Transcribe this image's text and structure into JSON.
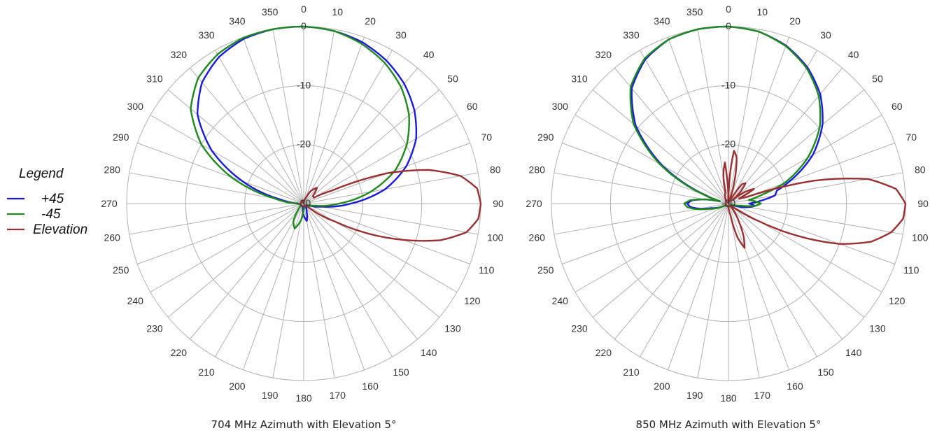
{
  "legend": {
    "title": "Legend",
    "items": [
      {
        "label": "+45",
        "color": "#1a1adb"
      },
      {
        "label": "-45",
        "color": "#1e8a1e"
      },
      {
        "label": "Elevation",
        "color": "#9b2f2f"
      }
    ]
  },
  "chart_data": [
    {
      "type": "polar-line",
      "title": "704 MHz Azimuth with Elevation 5°",
      "angular_ticks": [
        "0",
        "10",
        "20",
        "30",
        "40",
        "50",
        "60",
        "70",
        "80",
        "90",
        "100",
        "110",
        "120",
        "130",
        "140",
        "150",
        "160",
        "170",
        "180",
        "190",
        "200",
        "210",
        "220",
        "230",
        "240",
        "250",
        "260",
        "270",
        "280",
        "290",
        "300",
        "310",
        "320",
        "330",
        "340",
        "350"
      ],
      "radial_range": [
        -30,
        0
      ],
      "radial_ticks": [
        "0",
        "-10",
        "-20",
        "-30"
      ],
      "grid": true,
      "series": [
        {
          "name": "+45",
          "color": "#1a1adb",
          "angle": [
            0,
            10,
            20,
            30,
            40,
            50,
            60,
            70,
            80,
            90,
            100,
            110,
            120,
            130,
            140,
            150,
            160,
            170,
            180,
            190,
            200,
            210,
            220,
            230,
            240,
            250,
            260,
            270,
            280,
            290,
            300,
            310,
            320,
            330,
            340,
            350
          ],
          "values": [
            0,
            -0.3,
            -0.9,
            -2,
            -3.5,
            -5.5,
            -8,
            -11.5,
            -16,
            -22,
            -27,
            -29,
            -29.5,
            -29.5,
            -29.5,
            -29.2,
            -28.5,
            -27,
            -28,
            -29.2,
            -29.5,
            -29.5,
            -29.5,
            -29.5,
            -29.5,
            -29.5,
            -29.5,
            -29,
            -26,
            -19,
            -12,
            -6.5,
            -3.2,
            -1.3,
            -0.3,
            0
          ]
        },
        {
          "name": "-45",
          "color": "#1e8a1e",
          "angle": [
            0,
            10,
            20,
            30,
            40,
            50,
            60,
            70,
            80,
            90,
            100,
            110,
            120,
            130,
            140,
            150,
            160,
            170,
            180,
            190,
            200,
            210,
            220,
            230,
            240,
            250,
            260,
            270,
            280,
            290,
            300,
            310,
            320,
            330,
            340,
            350
          ],
          "values": [
            0,
            -0.3,
            -1.2,
            -2.5,
            -4.3,
            -6.7,
            -9.8,
            -13.5,
            -18.5,
            -24,
            -28,
            -29.2,
            -29.5,
            -29.5,
            -29.5,
            -29.5,
            -29.5,
            -29.4,
            -29,
            -27,
            -25.5,
            -26.5,
            -28.5,
            -29.2,
            -29.5,
            -29.5,
            -29.5,
            -29,
            -25,
            -17,
            -10,
            -5,
            -2.2,
            -0.8,
            -0.1,
            0
          ]
        },
        {
          "name": "Elevation",
          "color": "#9b2f2f",
          "angle": [
            0,
            10,
            20,
            30,
            40,
            50,
            60,
            65,
            70,
            75,
            80,
            85,
            90,
            95,
            100,
            105,
            110,
            115,
            120,
            125,
            130,
            140,
            150,
            170,
            190,
            210,
            230,
            250,
            270,
            290,
            310,
            330,
            350
          ],
          "values": [
            -30,
            -29.5,
            -29,
            -27.5,
            -26.5,
            -28,
            -28,
            -25,
            -15,
            -8,
            -3,
            -0.5,
            0,
            -0.3,
            -2,
            -6,
            -12,
            -18,
            -24,
            -27,
            -29.5,
            -29.5,
            -29.5,
            -29.5,
            -29.5,
            -29.5,
            -29.5,
            -29.5,
            -29.5,
            -29.5,
            -29.5,
            -29.5,
            -29.5
          ]
        }
      ]
    },
    {
      "type": "polar-line",
      "title": "850 MHz Azimuth with Elevation 5°",
      "angular_ticks": [
        "0",
        "10",
        "20",
        "30",
        "40",
        "50",
        "60",
        "70",
        "80",
        "90",
        "100",
        "110",
        "120",
        "130",
        "140",
        "150",
        "160",
        "170",
        "180",
        "190",
        "200",
        "210",
        "220",
        "230",
        "240",
        "250",
        "260",
        "270",
        "280",
        "290",
        "300",
        "310",
        "320",
        "330",
        "340",
        "350"
      ],
      "radial_range": [
        -30,
        0
      ],
      "radial_ticks": [
        "0",
        "-10",
        "-20",
        "-30"
      ],
      "grid": true,
      "series": [
        {
          "name": "+45",
          "color": "#1a1adb",
          "angle": [
            0,
            10,
            20,
            30,
            40,
            50,
            60,
            70,
            75,
            80,
            85,
            90,
            95,
            100,
            110,
            120,
            150,
            180,
            210,
            240,
            255,
            260,
            265,
            270,
            275,
            280,
            285,
            290,
            300,
            310,
            320,
            330,
            340,
            350
          ],
          "values": [
            0,
            -0.4,
            -1.5,
            -3.3,
            -5.8,
            -9.2,
            -13.5,
            -19,
            -21.5,
            -22,
            -24.5,
            -26.5,
            -25.5,
            -26.5,
            -29,
            -29.5,
            -29.5,
            -29.5,
            -29.5,
            -29.5,
            -27,
            -25,
            -23.5,
            -23,
            -23.8,
            -26,
            -28.5,
            -26,
            -17,
            -9.5,
            -4.5,
            -1.8,
            -0.4,
            0
          ]
        },
        {
          "name": "-45",
          "color": "#1e8a1e",
          "angle": [
            0,
            10,
            20,
            30,
            40,
            50,
            60,
            70,
            75,
            80,
            85,
            90,
            95,
            100,
            110,
            120,
            150,
            180,
            210,
            240,
            255,
            260,
            265,
            270,
            275,
            280,
            285,
            290,
            300,
            310,
            320,
            330,
            340,
            350
          ],
          "values": [
            0,
            -0.4,
            -1.6,
            -3.5,
            -6.2,
            -9.8,
            -14.5,
            -20,
            -24,
            -26.5,
            -25.5,
            -24.5,
            -25.5,
            -28,
            -29.5,
            -29.5,
            -29.5,
            -29.5,
            -29.5,
            -29.5,
            -26.5,
            -24.5,
            -23,
            -22.5,
            -23.5,
            -26,
            -28.5,
            -25.5,
            -16.5,
            -9,
            -4.2,
            -1.6,
            -0.4,
            0
          ]
        },
        {
          "name": "Elevation",
          "color": "#9b2f2f",
          "angle": [
            0,
            3,
            6,
            10,
            15,
            20,
            30,
            35,
            40,
            45,
            50,
            55,
            60,
            65,
            70,
            75,
            80,
            85,
            90,
            95,
            100,
            105,
            110,
            115,
            120,
            125,
            130,
            140,
            150,
            155,
            160,
            165,
            170,
            180,
            190,
            200,
            230,
            260,
            290,
            320,
            345,
            350,
            355
          ],
          "values": [
            -30,
            -25,
            -21,
            -22,
            -26,
            -30,
            -29,
            -26,
            -25.5,
            -27,
            -29,
            -26.5,
            -25,
            -28,
            -27,
            -15,
            -6,
            -1.5,
            0,
            -0.3,
            -2,
            -5,
            -10,
            -17,
            -24,
            -28,
            -29.5,
            -29.5,
            -26.5,
            -24,
            -22,
            -24,
            -28,
            -29.5,
            -29.5,
            -29.5,
            -29.5,
            -29.5,
            -29.5,
            -29.5,
            -28,
            -25,
            -23
          ]
        }
      ]
    }
  ]
}
